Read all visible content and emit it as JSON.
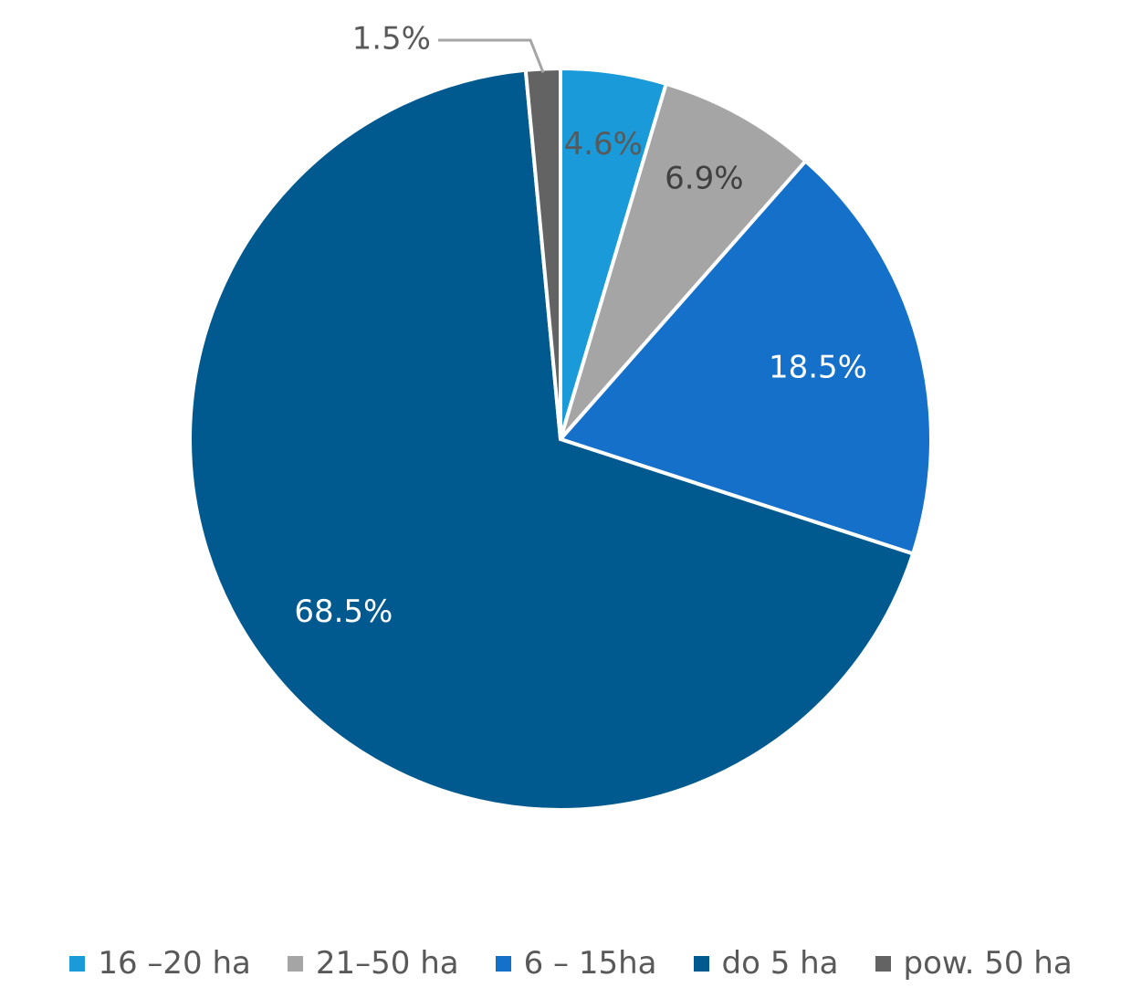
{
  "chart_data": {
    "type": "pie",
    "title": "",
    "start_angle_deg": 0,
    "direction": "clockwise",
    "legend_position": "bottom",
    "slices": [
      {
        "label": "16 –20 ha",
        "value": 4.6,
        "display": "4.6%",
        "color": "#1a9ad8",
        "label_color": "#595959"
      },
      {
        "label": "21–50 ha",
        "value": 6.9,
        "display": "6.9%",
        "color": "#a5a5a5",
        "label_color": "#404040"
      },
      {
        "label": "6 – 15ha",
        "value": 18.5,
        "display": "18.5%",
        "color": "#1470c9",
        "label_color": "#ffffff"
      },
      {
        "label": "do 5 ha",
        "value": 68.5,
        "display": "68.5%",
        "color": "#015a8f",
        "label_color": "#ffffff"
      },
      {
        "label": "pow. 50 ha",
        "value": 1.5,
        "display": "1.5%",
        "color": "#636363",
        "label_color": "#595959",
        "leader_line": true
      }
    ]
  }
}
